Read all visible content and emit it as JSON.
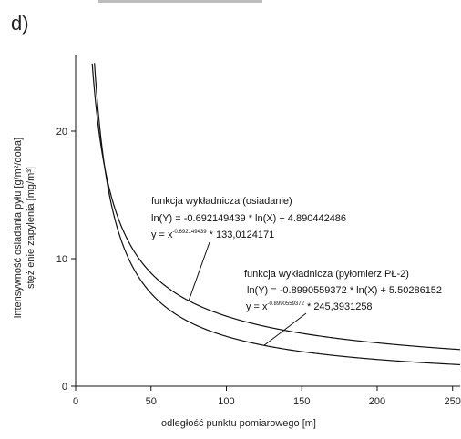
{
  "panel_label": "d)",
  "chart_data": {
    "type": "line",
    "title": "",
    "xlabel": "odległość  punktu pomiarowego [m]",
    "ylabel_lines": [
      "intensywność  osiadania pyłu [g/m²/doba]",
      "stęż enie zapylenia [mg/m³]"
    ],
    "xlim": [
      0,
      255
    ],
    "ylim": [
      0,
      26
    ],
    "x_ticks": [
      0,
      50,
      100,
      150,
      200,
      250
    ],
    "y_ticks": [
      0,
      10,
      20
    ],
    "x_tick_labels": [
      "0",
      "50",
      "100",
      "150",
      "200",
      "250"
    ],
    "y_tick_labels": [
      "0",
      "10",
      "20"
    ],
    "grid": false,
    "series": [
      {
        "key": "osiadanie",
        "coefficient": 133.0124171,
        "exponent": -0.692149439,
        "x_start": 8,
        "x_end": 255
      },
      {
        "key": "pylomierz",
        "coefficient": 245.3931258,
        "exponent": -0.8990559372,
        "x_start": 12,
        "x_end": 255
      }
    ],
    "annotations": [
      {
        "title": "funkcja wykładnicza (osiadanie)",
        "eq_ln": "ln(Y) = -0.692149439 * ln(X) + 4.890442486",
        "eq_pow_base": "y = x",
        "eq_pow_exp": "-0.692149439",
        "eq_pow_tail": " * 133,0124171",
        "points_to_x": 75
      },
      {
        "title": "funkcja wykładnicza (pyłomierz PŁ-2)",
        "eq_ln": "ln(Y) = -0.8990559372 * ln(X) + 5.50286152",
        "eq_pow_base": "y = x",
        "eq_pow_exp": "-0.8990559372",
        "eq_pow_tail": " * 245,3931258",
        "points_to_x": 125
      }
    ]
  }
}
